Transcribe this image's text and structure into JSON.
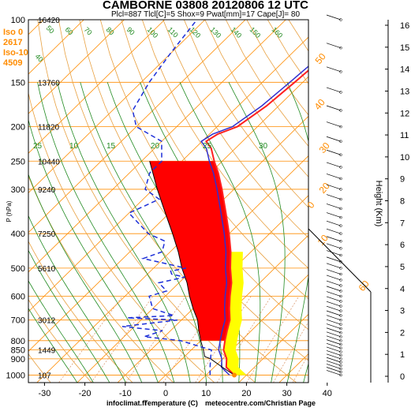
{
  "chart_data": {
    "type": "line",
    "title": "CAMBORNE 03808 20120806 12 UTC",
    "subtitle": "Plcl=887 Tlcl[C]=5 Shox=9 Pwat[mm]=17 Cape[J]= 80",
    "xlabel": "Temperature (C)",
    "ylabel": "P (hPa)",
    "y2label": "Height (Km)",
    "footer_left": "infoclimat.fr",
    "footer_right": "meteocentre.com/Christian Page",
    "x_ticks": [
      "-30",
      "-20",
      "-10",
      "0",
      "10",
      "20",
      "30",
      "40"
    ],
    "p_ticks": [
      "100",
      "150",
      "200",
      "250",
      "300",
      "400",
      "500",
      "600",
      "700",
      "800",
      "850",
      "900",
      "1000"
    ],
    "h_ticks": [
      "0",
      "1",
      "2",
      "3",
      "4",
      "5",
      "6",
      "7",
      "8",
      "9",
      "10",
      "11",
      "12",
      "13",
      "14",
      "15",
      "16"
    ],
    "iso_labels": [
      "Iso 0",
      "2617",
      "Iso-10",
      "4509"
    ],
    "level_heights": [
      {
        "p": 100,
        "h": "16420"
      },
      {
        "p": 150,
        "h": "13760"
      },
      {
        "p": 200,
        "h": "11820"
      },
      {
        "p": 250,
        "h": "10440"
      },
      {
        "p": 300,
        "h": "9240"
      },
      {
        "p": 400,
        "h": "7250"
      },
      {
        "p": 500,
        "h": "5610"
      },
      {
        "p": 700,
        "h": "3012"
      },
      {
        "p": 850,
        "h": "1449"
      },
      {
        "p": 1000,
        "h": "107"
      }
    ],
    "mixing_ratio_labels": [
      "25",
      "10",
      "15",
      "20",
      "25",
      "30"
    ],
    "theta_e_labels": [
      "40",
      "50",
      "60",
      "70",
      "80",
      "90",
      "100",
      "110",
      "120",
      "130",
      "140",
      "150",
      "160"
    ],
    "dry_adiabat_labels": [
      "0",
      "10",
      "20",
      "30",
      "40",
      "50",
      "60"
    ],
    "theta_labels": [
      "10",
      "20",
      "30"
    ],
    "temperature_profile": [
      {
        "p": 1000,
        "t": 17
      },
      {
        "p": 950,
        "t": 13
      },
      {
        "p": 900,
        "t": 11
      },
      {
        "p": 850,
        "t": 8
      },
      {
        "p": 800,
        "t": 6
      },
      {
        "p": 750,
        "t": 4
      },
      {
        "p": 700,
        "t": 2
      },
      {
        "p": 650,
        "t": -1
      },
      {
        "p": 600,
        "t": -4
      },
      {
        "p": 550,
        "t": -7
      },
      {
        "p": 500,
        "t": -11
      },
      {
        "p": 450,
        "t": -15
      },
      {
        "p": 400,
        "t": -20
      },
      {
        "p": 350,
        "t": -26
      },
      {
        "p": 300,
        "t": -33
      },
      {
        "p": 270,
        "t": -38
      },
      {
        "p": 250,
        "t": -42
      },
      {
        "p": 230,
        "t": -46
      },
      {
        "p": 220,
        "t": -49
      },
      {
        "p": 210,
        "t": -48
      },
      {
        "p": 200,
        "t": -45
      },
      {
        "p": 175,
        "t": -43
      },
      {
        "p": 150,
        "t": -42
      },
      {
        "p": 125,
        "t": -41
      },
      {
        "p": 100,
        "t": -41
      }
    ],
    "dewpoint_profile": [
      {
        "p": 1000,
        "t": 11
      },
      {
        "p": 950,
        "t": 9
      },
      {
        "p": 900,
        "t": 7
      },
      {
        "p": 850,
        "t": 5
      },
      {
        "p": 800,
        "t": -5
      },
      {
        "p": 780,
        "t": -15
      },
      {
        "p": 750,
        "t": -12
      },
      {
        "p": 730,
        "t": -23
      },
      {
        "p": 700,
        "t": -11
      },
      {
        "p": 690,
        "t": -24
      },
      {
        "p": 680,
        "t": -13
      },
      {
        "p": 650,
        "t": -20
      },
      {
        "p": 600,
        "t": -24
      },
      {
        "p": 580,
        "t": -21
      },
      {
        "p": 550,
        "t": -25
      },
      {
        "p": 530,
        "t": -20
      },
      {
        "p": 520,
        "t": -24
      },
      {
        "p": 510,
        "t": -25
      },
      {
        "p": 500,
        "t": -22
      },
      {
        "p": 470,
        "t": -35
      },
      {
        "p": 450,
        "t": -32
      },
      {
        "p": 420,
        "t": -34
      },
      {
        "p": 400,
        "t": -40
      },
      {
        "p": 350,
        "t": -50
      },
      {
        "p": 320,
        "t": -46
      },
      {
        "p": 300,
        "t": -52
      },
      {
        "p": 270,
        "t": -55
      },
      {
        "p": 250,
        "t": -55
      },
      {
        "p": 220,
        "t": -60
      },
      {
        "p": 200,
        "t": -70
      },
      {
        "p": 180,
        "t": -75
      },
      {
        "p": 150,
        "t": -78
      },
      {
        "p": 125,
        "t": -80
      },
      {
        "p": 100,
        "t": -82
      }
    ],
    "parcel_profile": [
      {
        "p": 1000,
        "t": 17
      },
      {
        "p": 950,
        "t": 12
      },
      {
        "p": 900,
        "t": 7
      },
      {
        "p": 887,
        "t": 5
      },
      {
        "p": 850,
        "t": 3
      },
      {
        "p": 800,
        "t": 0
      },
      {
        "p": 750,
        "t": -3
      },
      {
        "p": 700,
        "t": -6
      },
      {
        "p": 650,
        "t": -10
      },
      {
        "p": 600,
        "t": -14
      },
      {
        "p": 550,
        "t": -18
      },
      {
        "p": 500,
        "t": -23
      },
      {
        "p": 450,
        "t": -28
      },
      {
        "p": 400,
        "t": -34
      },
      {
        "p": 350,
        "t": -41
      },
      {
        "p": 300,
        "t": -49
      },
      {
        "p": 250,
        "t": -58
      }
    ],
    "colors": {
      "temperature": "#ff2020",
      "temperature2": "#3030d0",
      "dewpoint": "#1d2fd8",
      "cape": "#ff0000",
      "cin_area": "#ffff00",
      "isotherm": "#ff8c00",
      "isobar": "#ff8c00",
      "mixing_ratio": "#228b22",
      "moist_adiabat": "#228b22",
      "title": "#000000",
      "iso_text": "#ff8c00"
    }
  }
}
